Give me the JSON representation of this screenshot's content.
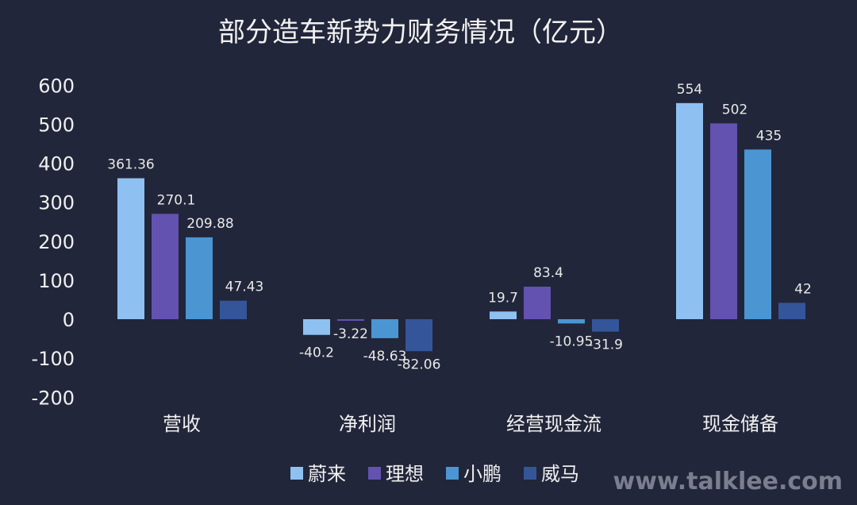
{
  "chart_data": {
    "type": "bar",
    "title": "部分造车新势力财务情况（亿元）",
    "categories": [
      "营收",
      "净利润",
      "经营现金流",
      "现金储备"
    ],
    "series": [
      {
        "name": "蔚来",
        "color": "#8ec1f2",
        "values": [
          361.36,
          -40.2,
          19.7,
          554
        ]
      },
      {
        "name": "理想",
        "color": "#6352b0",
        "values": [
          270.1,
          -3.22,
          83.4,
          502
        ]
      },
      {
        "name": "小鹏",
        "color": "#4b95d3",
        "values": [
          209.88,
          -48.63,
          -10.95,
          435
        ]
      },
      {
        "name": "威马",
        "color": "#34559a",
        "values": [
          47.43,
          -82.06,
          -31.9,
          42
        ]
      }
    ],
    "ylim": [
      -200,
      600
    ],
    "yticks": [
      600,
      500,
      400,
      300,
      200,
      100,
      0,
      -100,
      -200
    ],
    "xlabel": "",
    "ylabel": "",
    "grid": false,
    "legend": "bottom-center",
    "background": "#22263a"
  },
  "watermark": "www.talklee.com"
}
